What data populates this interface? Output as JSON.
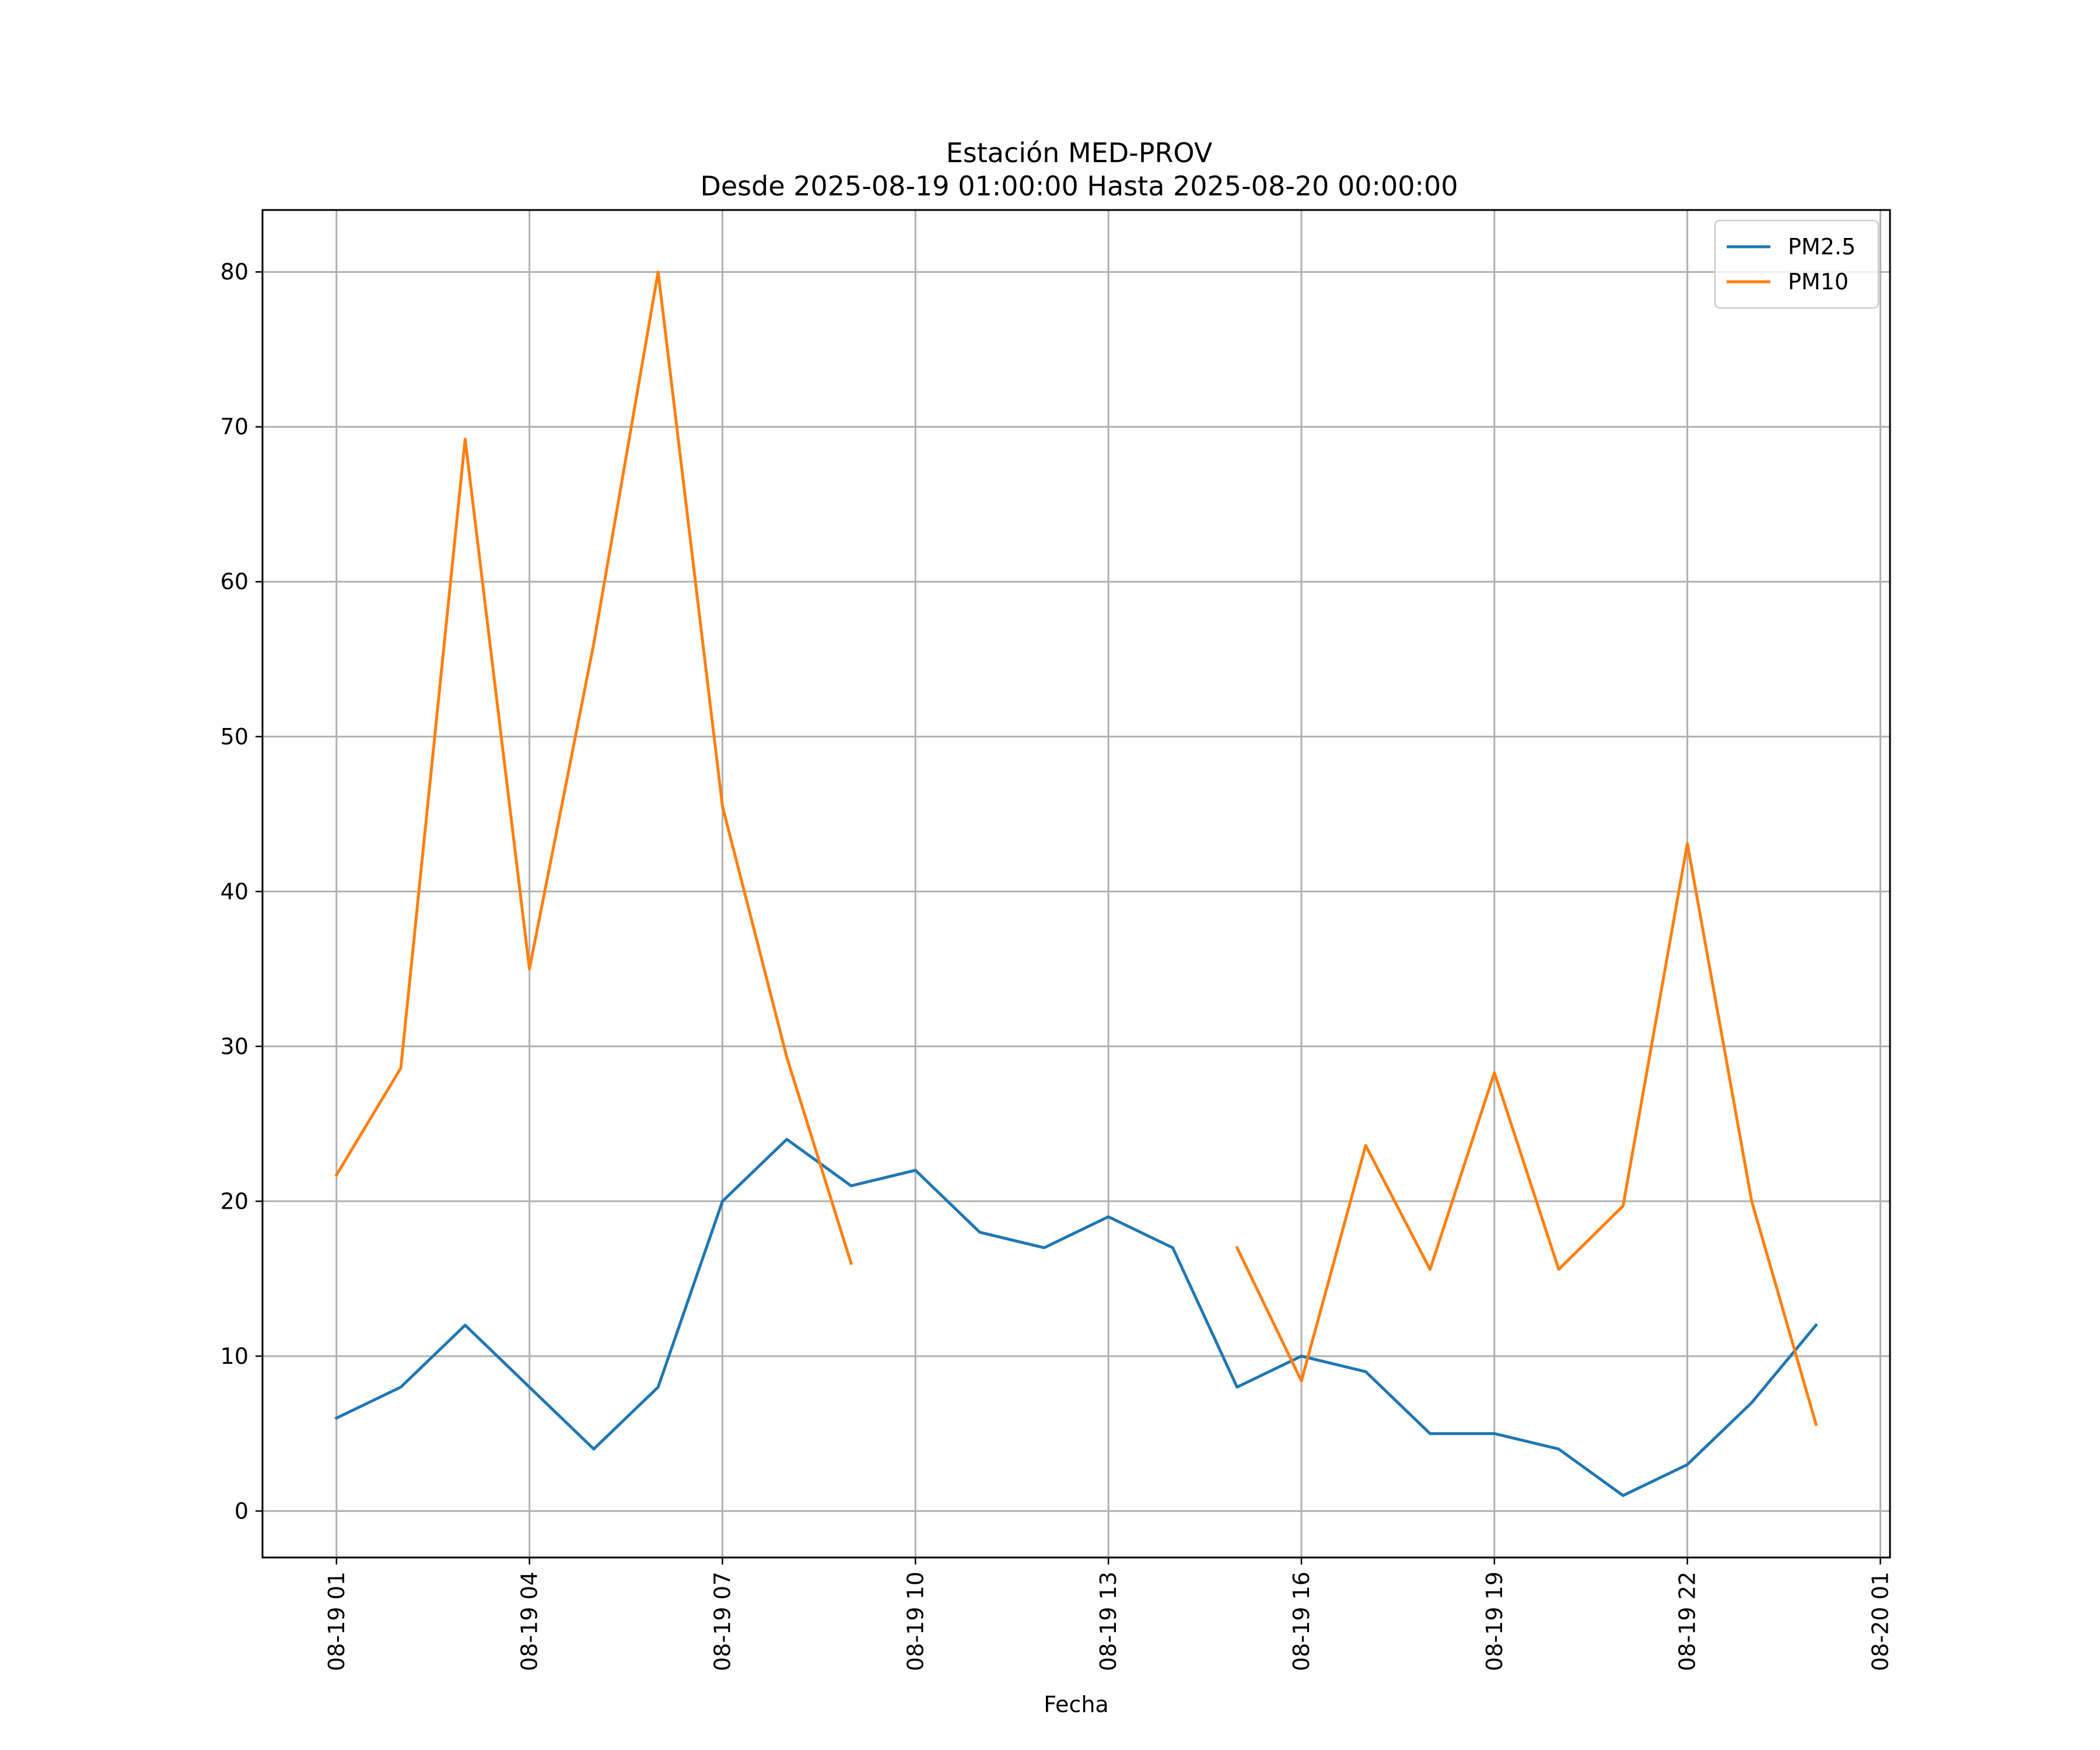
{
  "chart_data": {
    "type": "line",
    "title": "Estación MED-PROV",
    "subtitle": "Desde 2025-08-19 01:00:00 Hasta 2025-08-20 00:00:00",
    "xlabel": "Fecha",
    "ylabel": "",
    "x": [
      "2025-08-19 01:00",
      "2025-08-19 02:00",
      "2025-08-19 03:00",
      "2025-08-19 04:00",
      "2025-08-19 05:00",
      "2025-08-19 06:00",
      "2025-08-19 07:00",
      "2025-08-19 08:00",
      "2025-08-19 09:00",
      "2025-08-19 10:00",
      "2025-08-19 11:00",
      "2025-08-19 12:00",
      "2025-08-19 13:00",
      "2025-08-19 14:00",
      "2025-08-19 15:00",
      "2025-08-19 16:00",
      "2025-08-19 17:00",
      "2025-08-19 18:00",
      "2025-08-19 19:00",
      "2025-08-19 20:00",
      "2025-08-19 21:00",
      "2025-08-19 22:00",
      "2025-08-19 23:00",
      "2025-08-20 00:00"
    ],
    "x_ticks": [
      "08-19 01",
      "08-19 04",
      "08-19 07",
      "08-19 10",
      "08-19 13",
      "08-19 16",
      "08-19 19",
      "08-19 22",
      "08-20 01"
    ],
    "x_tick_dates": [
      "2025-08-19 01:00",
      "2025-08-19 04:00",
      "2025-08-19 07:00",
      "2025-08-19 10:00",
      "2025-08-19 13:00",
      "2025-08-19 16:00",
      "2025-08-19 19:00",
      "2025-08-19 22:00",
      "2025-08-20 01:00"
    ],
    "xlim": [
      "2025-08-18 23:51",
      "2025-08-20 01:09"
    ],
    "ylim": [
      -3,
      84
    ],
    "y_ticks": [
      0,
      10,
      20,
      30,
      40,
      50,
      60,
      70,
      80
    ],
    "grid": true,
    "legend_position": "top-right",
    "series": [
      {
        "name": "PM2.5",
        "color": "#1f77b4",
        "values": [
          6,
          8,
          12,
          8,
          4,
          8,
          20,
          24,
          21,
          22,
          18,
          17,
          19,
          17,
          8,
          10,
          9,
          5,
          5,
          4,
          1,
          3,
          7,
          12
        ]
      },
      {
        "name": "PM10",
        "color": "#ff7f0e",
        "values": [
          21.7,
          28.6,
          69.2,
          35,
          56,
          80,
          45.5,
          29.3,
          16,
          null,
          null,
          null,
          null,
          null,
          17,
          8.4,
          23.6,
          15.6,
          28.3,
          15.6,
          19.7,
          43.1,
          20,
          5.6
        ]
      }
    ]
  }
}
